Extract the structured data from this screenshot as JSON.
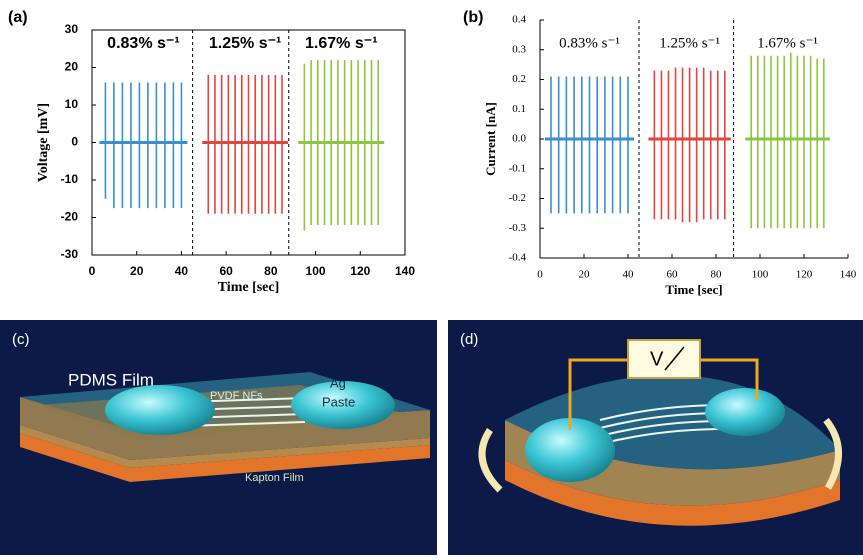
{
  "chart_data": [
    {
      "type": "spike",
      "panel": "(a)",
      "xlabel": "Time [sec]",
      "ylabel": "Voltage [mV]",
      "xlim": [
        0,
        140
      ],
      "xticks": [
        0,
        20,
        40,
        60,
        80,
        100,
        120,
        140
      ],
      "ylim": [
        -30,
        30
      ],
      "yticks": [
        -30,
        -20,
        -10,
        0,
        10,
        20,
        30
      ],
      "separators": [
        45,
        88
      ],
      "series": [
        {
          "name": "0.83% s⁻¹",
          "color": "#3a8fd0",
          "x": [
            6,
            9.8,
            13.6,
            17.4,
            21.2,
            25,
            28.8,
            32.6,
            36.4,
            40
          ],
          "values": [
            16,
            16,
            16,
            16,
            16,
            16,
            16,
            16,
            16,
            16
          ],
          "lows": [
            -15,
            -17.5,
            -17.5,
            -17.5,
            -17.5,
            -17.5,
            -17.5,
            -17.5,
            -17.5,
            -17.5
          ]
        },
        {
          "name": "1.25% s⁻¹",
          "color": "#e0463f",
          "x": [
            52,
            55,
            58,
            61,
            64,
            67,
            70,
            73,
            76,
            79,
            82,
            85
          ],
          "values": [
            18,
            18,
            18,
            18,
            18,
            18,
            18,
            18,
            18,
            18,
            18,
            18
          ],
          "lows": [
            -19,
            -19,
            -19,
            -19,
            -19,
            -19,
            -19,
            -19,
            -19,
            -19,
            -19,
            -19
          ]
        },
        {
          "name": "1.67% s⁻¹",
          "color": "#8cc63f",
          "x": [
            95,
            98,
            101,
            104,
            107,
            110,
            113,
            116,
            119,
            122,
            125,
            128
          ],
          "values": [
            21,
            22,
            22,
            22,
            22,
            22,
            22,
            22,
            22,
            22,
            22,
            22
          ],
          "lows": [
            -23.5,
            -22,
            -22,
            -22,
            -22,
            -22,
            -22,
            -22,
            -22,
            -22,
            -22,
            -22
          ]
        }
      ]
    },
    {
      "type": "spike",
      "panel": "(b)",
      "xlabel": "Time [sec]",
      "ylabel": "Current [nA]",
      "xlim": [
        0,
        140
      ],
      "xticks": [
        0,
        20,
        40,
        60,
        80,
        100,
        120,
        140
      ],
      "ylim": [
        -0.4,
        0.4
      ],
      "yticks": [
        -0.4,
        -0.3,
        -0.2,
        -0.1,
        {
          "value": 0,
          "label": "0.0"
        },
        0.1,
        0.2,
        0.3,
        0.4
      ],
      "separators": [
        45,
        88
      ],
      "series": [
        {
          "name": "0.83% s⁻¹",
          "color": "#3a8fd0",
          "x": [
            5,
            8.5,
            12,
            15.5,
            19,
            22.5,
            26,
            29.5,
            33,
            36.5,
            40
          ],
          "values": [
            0.21,
            0.21,
            0.21,
            0.21,
            0.21,
            0.21,
            0.21,
            0.21,
            0.21,
            0.21,
            0.21
          ],
          "lows": [
            -0.25,
            -0.25,
            -0.25,
            -0.25,
            -0.25,
            -0.25,
            -0.25,
            -0.25,
            -0.25,
            -0.25,
            -0.25
          ]
        },
        {
          "name": "1.25% s⁻¹",
          "color": "#e0463f",
          "x": [
            52,
            55.2,
            58.4,
            61.6,
            64.8,
            68,
            71.2,
            74.4,
            77.6,
            80.8,
            84
          ],
          "values": [
            0.23,
            0.23,
            0.23,
            0.24,
            0.24,
            0.24,
            0.24,
            0.24,
            0.23,
            0.23,
            0.23
          ],
          "lows": [
            -0.27,
            -0.27,
            -0.27,
            -0.27,
            -0.28,
            -0.28,
            -0.28,
            -0.27,
            -0.27,
            -0.27,
            -0.27
          ]
        },
        {
          "name": "1.67% s⁻¹",
          "color": "#8cc63f",
          "x": [
            96,
            99,
            102,
            105,
            108,
            111,
            114,
            117,
            120,
            123,
            126,
            129
          ],
          "values": [
            0.28,
            0.28,
            0.28,
            0.28,
            0.28,
            0.28,
            0.29,
            0.28,
            0.28,
            0.28,
            0.27,
            0.27
          ],
          "lows": [
            -0.3,
            -0.3,
            -0.3,
            -0.3,
            -0.3,
            -0.3,
            -0.3,
            -0.3,
            -0.3,
            -0.3,
            -0.3,
            -0.3
          ]
        }
      ]
    }
  ],
  "diagrams": {
    "c": {
      "panel": "(c)",
      "pdms": "PDMS Film",
      "pvdf": "PVDF NFs",
      "ag_paste": [
        "Ag",
        "Paste"
      ],
      "kapton": "Kapton Film"
    },
    "d": {
      "panel": "(d)",
      "meter": "V"
    }
  }
}
